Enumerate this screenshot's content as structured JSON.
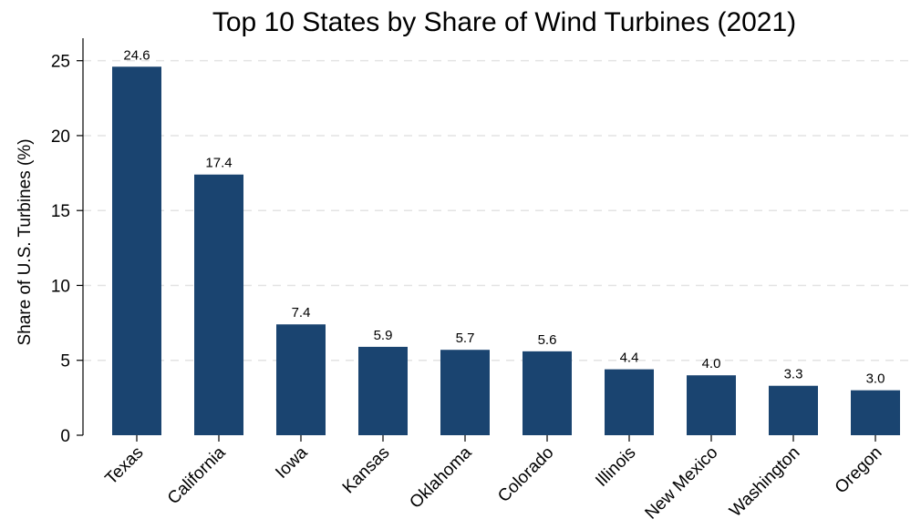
{
  "chart_data": {
    "type": "bar",
    "title": "Top 10 States by Share of Wind Turbines (2021)",
    "xlabel": "",
    "ylabel": "Share of U.S. Turbines (%)",
    "categories": [
      "Texas",
      "California",
      "Iowa",
      "Kansas",
      "Oklahoma",
      "Colorado",
      "Illinois",
      "New Mexico",
      "Washington",
      "Oregon"
    ],
    "values": [
      24.6,
      17.4,
      7.4,
      5.9,
      5.7,
      5.6,
      4.4,
      4.0,
      3.3,
      3.0
    ],
    "data_labels": [
      "24.6",
      "17.4",
      "7.4",
      "5.9",
      "5.7",
      "5.6",
      "4.4",
      "4.0",
      "3.3",
      "3.0"
    ],
    "yticks": [
      0,
      5,
      10,
      15,
      20,
      25
    ],
    "ylim": [
      0,
      26.5
    ],
    "grid": true,
    "legend": "none",
    "bar_color": "#1a4470"
  }
}
